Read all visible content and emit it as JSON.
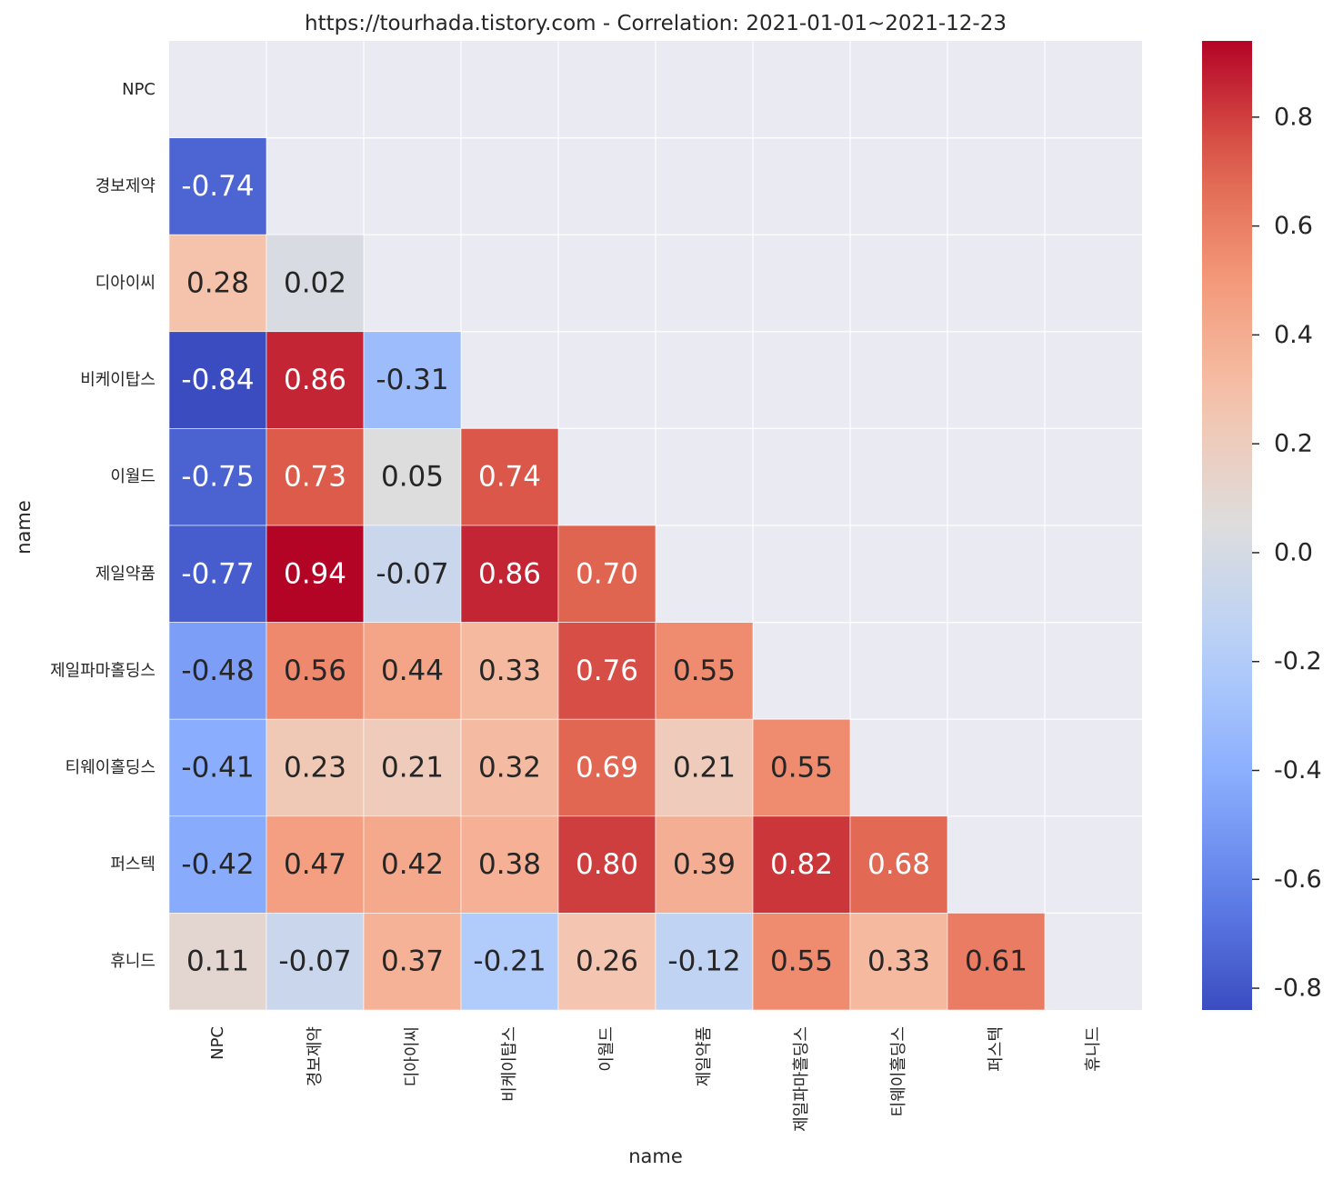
{
  "chart_data": {
    "type": "heatmap",
    "title": "https://tourhada.tistory.com - Correlation: 2021-01-01~2021-12-23",
    "xlabel": "name",
    "ylabel": "name",
    "labels": [
      "NPC",
      "경보제약",
      "디아이씨",
      "비케이탑스",
      "이월드",
      "제일약품",
      "제일파마홀딩스",
      "티웨이홀딩스",
      "퍼스텍",
      "휴니드"
    ],
    "mask": "upper-triangle-including-diagonal",
    "values": [
      [
        null,
        null,
        null,
        null,
        null,
        null,
        null,
        null,
        null,
        null
      ],
      [
        -0.74,
        null,
        null,
        null,
        null,
        null,
        null,
        null,
        null,
        null
      ],
      [
        0.28,
        0.02,
        null,
        null,
        null,
        null,
        null,
        null,
        null,
        null
      ],
      [
        -0.84,
        0.86,
        -0.31,
        null,
        null,
        null,
        null,
        null,
        null,
        null
      ],
      [
        -0.75,
        0.73,
        0.05,
        0.74,
        null,
        null,
        null,
        null,
        null,
        null
      ],
      [
        -0.77,
        0.94,
        -0.07,
        0.86,
        0.7,
        null,
        null,
        null,
        null,
        null
      ],
      [
        -0.48,
        0.56,
        0.44,
        0.33,
        0.76,
        0.55,
        null,
        null,
        null,
        null
      ],
      [
        -0.41,
        0.23,
        0.21,
        0.32,
        0.69,
        0.21,
        0.55,
        null,
        null,
        null
      ],
      [
        -0.42,
        0.47,
        0.42,
        0.38,
        0.8,
        0.39,
        0.82,
        0.68,
        null,
        null
      ],
      [
        0.11,
        -0.07,
        0.37,
        -0.21,
        0.26,
        -0.12,
        0.55,
        0.33,
        0.61,
        null
      ]
    ],
    "value_labels": [
      [
        "",
        "",
        "",
        "",
        "",
        "",
        "",
        "",
        "",
        ""
      ],
      [
        "-0.74",
        "",
        "",
        "",
        "",
        "",
        "",
        "",
        "",
        ""
      ],
      [
        "0.28",
        "0.02",
        "",
        "",
        "",
        "",
        "",
        "",
        "",
        ""
      ],
      [
        "-0.84",
        "0.86",
        "-0.31",
        "",
        "",
        "",
        "",
        "",
        "",
        ""
      ],
      [
        "-0.75",
        "0.73",
        "0.05",
        "0.74",
        "",
        "",
        "",
        "",
        "",
        ""
      ],
      [
        "-0.77",
        "0.94",
        "-0.07",
        "0.86",
        "0.70",
        "",
        "",
        "",
        "",
        ""
      ],
      [
        "-0.48",
        "0.56",
        "0.44",
        "0.33",
        "0.76",
        "0.55",
        "",
        "",
        "",
        ""
      ],
      [
        "-0.41",
        "0.23",
        "0.21",
        "0.32",
        "0.69",
        "0.21",
        "0.55",
        "",
        "",
        ""
      ],
      [
        "-0.42",
        "0.47",
        "0.42",
        "0.38",
        "0.80",
        "0.39",
        "0.82",
        "0.68",
        "",
        ""
      ],
      [
        "0.11",
        "-0.07",
        "0.37",
        "-0.21",
        "0.26",
        "-0.12",
        "0.55",
        "0.33",
        "0.61",
        ""
      ]
    ],
    "colormap": "coolwarm",
    "vmin": -0.84,
    "vmax": 0.94,
    "colorbar_ticks": [
      0.8,
      0.6,
      0.4,
      0.2,
      0.0,
      -0.2,
      -0.4,
      -0.6,
      -0.8
    ],
    "colorbar_tick_labels": [
      "0.8",
      "0.6",
      "0.4",
      "0.2",
      "0.0",
      "-0.2",
      "-0.4",
      "-0.6",
      "-0.8"
    ],
    "background_color": "#eaeaf2",
    "grid_color": "#ffffff",
    "text_color_dark": "#262626",
    "text_color_light": "#ffffff"
  }
}
